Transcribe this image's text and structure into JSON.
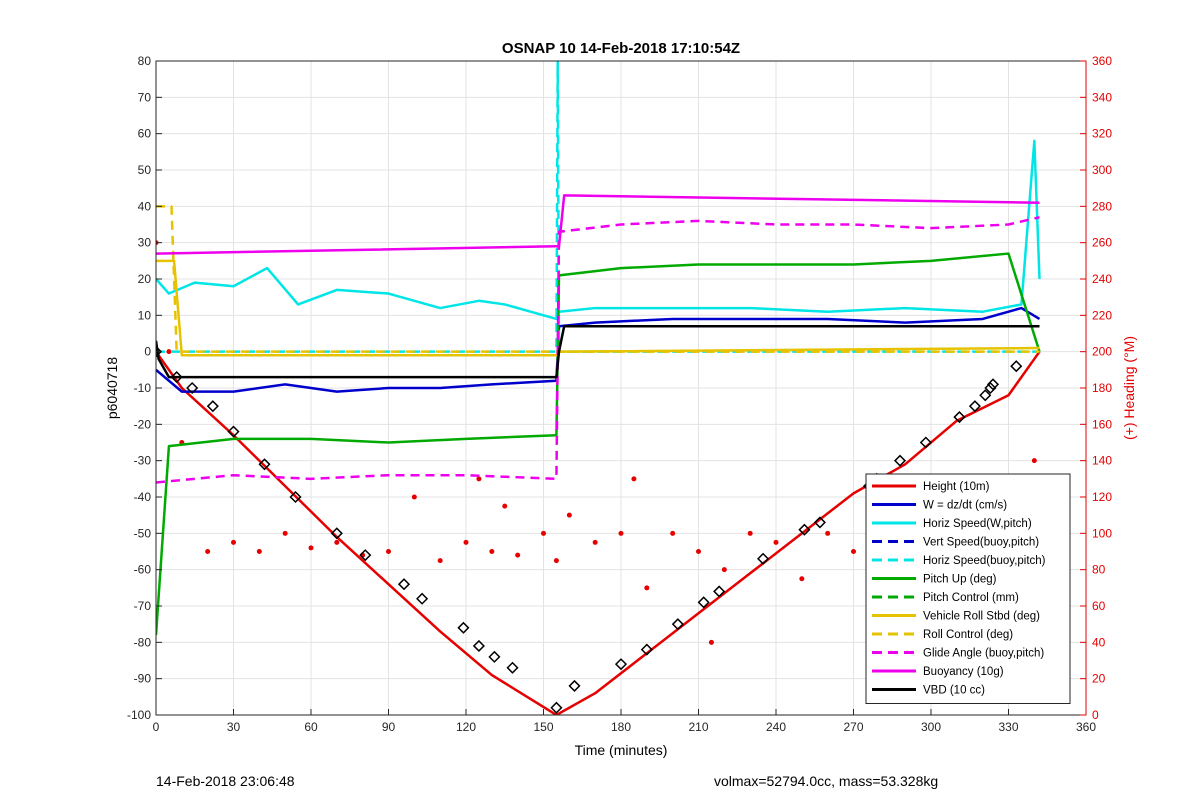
{
  "chart_data": {
    "type": "line",
    "title": "OSNAP 10 14-Feb-2018 17:10:54Z",
    "xlabel": "Time (minutes)",
    "ylabel": "p6040718",
    "ylabel_right": "(+) Heading (°M)",
    "xlim": [
      0,
      360
    ],
    "ylim": [
      -100,
      80
    ],
    "ylim_right": [
      0,
      360
    ],
    "xticks": [
      0,
      30,
      60,
      90,
      120,
      150,
      180,
      210,
      240,
      270,
      300,
      330,
      360
    ],
    "yticks": [
      -100,
      -90,
      -80,
      -70,
      -60,
      -50,
      -40,
      -30,
      -20,
      -10,
      0,
      10,
      20,
      30,
      40,
      50,
      60,
      70,
      80
    ],
    "yticks_right": [
      0,
      20,
      40,
      60,
      80,
      100,
      120,
      140,
      160,
      180,
      200,
      220,
      240,
      260,
      280,
      300,
      320,
      340,
      360
    ],
    "grid": true,
    "legend_position": "bottom-right",
    "series": [
      {
        "name": "Height (10m)",
        "color": "#e60000",
        "style": "solid",
        "x": [
          0,
          10,
          30,
          50,
          70,
          90,
          110,
          130,
          155,
          170,
          190,
          210,
          230,
          250,
          270,
          290,
          310,
          330,
          342
        ],
        "y": [
          0,
          -10,
          -23,
          -37,
          -51,
          -64,
          -77,
          -89,
          -100,
          -94,
          -83,
          -72,
          -61,
          -50,
          -39,
          -31,
          -19,
          -12,
          0
        ]
      },
      {
        "name": "W = dz/dt (cm/s)",
        "color": "#0000cc",
        "style": "solid",
        "x": [
          0,
          10,
          30,
          50,
          70,
          90,
          110,
          130,
          155,
          156,
          170,
          200,
          230,
          260,
          290,
          320,
          335,
          342
        ],
        "y": [
          -5,
          -11,
          -11,
          -9,
          -11,
          -10,
          -10,
          -9,
          -8,
          7,
          8,
          9,
          9,
          9,
          8,
          9,
          12,
          9
        ]
      },
      {
        "name": "Horiz Speed(W,pitch)",
        "color": "#00e5e5",
        "style": "solid",
        "x": [
          0,
          5,
          15,
          30,
          43,
          55,
          70,
          90,
          110,
          125,
          135,
          155,
          156,
          170,
          200,
          230,
          260,
          290,
          320,
          335,
          340,
          342
        ],
        "y": [
          20,
          16,
          19,
          18,
          23,
          13,
          17,
          16,
          12,
          14,
          13,
          9,
          11,
          12,
          12,
          12,
          11,
          12,
          11,
          13,
          58,
          20
        ]
      },
      {
        "name": "Vert Speed(buoy,pitch)",
        "color": "#0000cc",
        "style": "dashed",
        "x": [],
        "y": []
      },
      {
        "name": "Horiz Speed(buoy,pitch)",
        "color": "#00e5e5",
        "style": "dashed",
        "x": [
          0,
          155,
          155.5,
          156,
          342
        ],
        "y": [
          0,
          0,
          80,
          0,
          0
        ]
      },
      {
        "name": "Pitch Up (deg)",
        "color": "#00aa00",
        "style": "solid",
        "x": [
          0,
          5,
          30,
          60,
          90,
          120,
          155,
          156,
          180,
          210,
          240,
          270,
          300,
          330,
          342
        ],
        "y": [
          -78,
          -26,
          -24,
          -24,
          -25,
          -24,
          -23,
          21,
          23,
          24,
          24,
          24,
          25,
          27,
          0
        ]
      },
      {
        "name": "Pitch Control (mm)",
        "color": "#00aa00",
        "style": "dashed",
        "x": [],
        "y": []
      },
      {
        "name": "Vehicle Roll Stbd (deg)",
        "color": "#e6c300",
        "style": "solid",
        "x": [
          0,
          7,
          10,
          155,
          156,
          342
        ],
        "y": [
          25,
          25,
          -1,
          -1,
          0,
          1
        ]
      },
      {
        "name": "Roll Control (deg)",
        "color": "#e6c300",
        "style": "dashed",
        "x": [
          0,
          6,
          8,
          155,
          156,
          342
        ],
        "y": [
          40,
          40,
          0,
          0,
          0,
          0
        ]
      },
      {
        "name": "Glide Angle (buoy,pitch)",
        "color": "#ee00ee",
        "style": "dashed",
        "x": [
          0,
          30,
          60,
          90,
          120,
          155,
          156,
          180,
          210,
          240,
          270,
          300,
          330,
          342
        ],
        "y": [
          -36,
          -34,
          -35,
          -34,
          -34,
          -35,
          33,
          35,
          36,
          35,
          35,
          34,
          35,
          37
        ]
      },
      {
        "name": "Buoyancy (10g)",
        "color": "#ee00ee",
        "style": "solid",
        "x": [
          0,
          155,
          156,
          158,
          342
        ],
        "y": [
          27,
          29,
          29,
          43,
          41
        ]
      },
      {
        "name": "VBD (10 cc)",
        "color": "#000000",
        "style": "solid",
        "x": [
          0,
          1,
          5,
          155,
          156,
          158,
          342
        ],
        "y": [
          3,
          -2,
          -7,
          -7,
          0,
          7,
          7
        ]
      }
    ],
    "heading_scatter": {
      "name": "Heading",
      "axis": "right",
      "color": "#e60000",
      "x": [
        0,
        5,
        10,
        20,
        30,
        40,
        50,
        60,
        70,
        80,
        90,
        100,
        110,
        120,
        125,
        130,
        135,
        140,
        150,
        155,
        160,
        170,
        180,
        185,
        190,
        200,
        210,
        215,
        220,
        230,
        240,
        250,
        260,
        270,
        280,
        290,
        300,
        310,
        320,
        330,
        340
      ],
      "y": [
        260,
        200,
        150,
        90,
        95,
        90,
        100,
        92,
        95,
        88,
        90,
        120,
        85,
        95,
        130,
        90,
        115,
        88,
        100,
        85,
        110,
        95,
        100,
        130,
        70,
        100,
        90,
        40,
        80,
        100,
        95,
        75,
        100,
        90,
        120,
        100,
        95,
        90,
        85,
        80,
        140
      ]
    },
    "height_markers": {
      "x": [
        0,
        8,
        14,
        22,
        30,
        42,
        54,
        70,
        81,
        96,
        103,
        119,
        125,
        131,
        138,
        155,
        162,
        180,
        190,
        202,
        212,
        218,
        235,
        251,
        257,
        276,
        279,
        288,
        298,
        311,
        317,
        321,
        323,
        324,
        333
      ],
      "y": [
        0,
        -7,
        -10,
        -15,
        -22,
        -31,
        -40,
        -50,
        -56,
        -64,
        -68,
        -76,
        -81,
        -84,
        -87,
        -98,
        -92,
        -86,
        -82,
        -75,
        -69,
        -66,
        -57,
        -49,
        -47,
        -37,
        -35,
        -30,
        -25,
        -18,
        -15,
        -12,
        -10,
        -9,
        -4
      ]
    }
  },
  "footer": {
    "left": "14-Feb-2018 23:06:48",
    "right": "volmax=52794.0cc, mass=53.328kg"
  }
}
